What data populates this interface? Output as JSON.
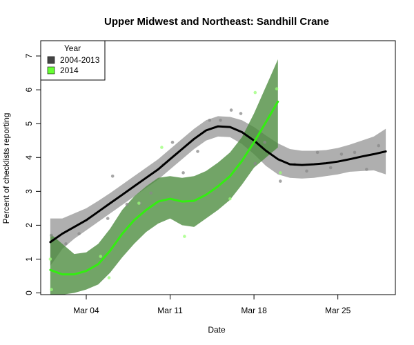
{
  "chart_data": {
    "type": "line",
    "title": "Upper Midwest and Northeast: Sandhill Crane",
    "xlabel": "Date",
    "ylabel": "Percent of checklists reporting",
    "x_units": "day of March",
    "xlim": [
      0.2,
      29.8
    ],
    "ylim": [
      -0.05,
      7.45
    ],
    "x_ticks": [
      {
        "value": 4,
        "label": "Mar 04"
      },
      {
        "value": 11,
        "label": "Mar 11"
      },
      {
        "value": 18,
        "label": "Mar 18"
      },
      {
        "value": 25,
        "label": "Mar 25"
      }
    ],
    "y_ticks": [
      {
        "value": 0,
        "label": "0"
      },
      {
        "value": 1,
        "label": "1"
      },
      {
        "value": 2,
        "label": "2"
      },
      {
        "value": 3,
        "label": "3"
      },
      {
        "value": 4,
        "label": "4"
      },
      {
        "value": 5,
        "label": "5"
      },
      {
        "value": 6,
        "label": "6"
      },
      {
        "value": 7,
        "label": "7"
      }
    ],
    "legend": {
      "title": "Year",
      "position": "top-left",
      "entries": [
        {
          "label": "2004-2013",
          "color": "#444444"
        },
        {
          "label": "2014",
          "color": "#66ff33"
        }
      ]
    },
    "series": [
      {
        "name": "2004-2013",
        "line_color": "#000000",
        "band_color": "#999999",
        "point_color": "#888888",
        "x": [
          1,
          2,
          3,
          4,
          5,
          6,
          7,
          8,
          9,
          10,
          11,
          12,
          13,
          14,
          15,
          16,
          17,
          18,
          19,
          20,
          21,
          22,
          23,
          24,
          25,
          26,
          27,
          28,
          29
        ],
        "y": [
          1.5,
          1.75,
          1.95,
          2.15,
          2.4,
          2.65,
          2.9,
          3.15,
          3.4,
          3.65,
          3.95,
          4.25,
          4.55,
          4.8,
          4.92,
          4.9,
          4.75,
          4.5,
          4.2,
          3.95,
          3.8,
          3.78,
          3.8,
          3.83,
          3.88,
          3.95,
          4.03,
          4.1,
          4.18
        ],
        "lower": [
          0.8,
          1.3,
          1.6,
          1.85,
          2.1,
          2.35,
          2.6,
          2.85,
          3.1,
          3.35,
          3.65,
          3.95,
          4.25,
          4.5,
          4.62,
          4.6,
          4.4,
          4.1,
          3.75,
          3.5,
          3.4,
          3.38,
          3.4,
          3.45,
          3.5,
          3.58,
          3.6,
          3.62,
          3.5
        ],
        "upper": [
          2.2,
          2.2,
          2.35,
          2.5,
          2.72,
          2.95,
          3.2,
          3.45,
          3.7,
          3.95,
          4.25,
          4.55,
          4.85,
          5.1,
          5.22,
          5.2,
          5.1,
          4.9,
          4.65,
          4.42,
          4.25,
          4.2,
          4.2,
          4.22,
          4.28,
          4.38,
          4.5,
          4.62,
          4.85
        ],
        "points": [
          {
            "x": 1.1,
            "y": 1.7
          },
          {
            "x": 2.3,
            "y": 1.45
          },
          {
            "x": 3.4,
            "y": 1.75
          },
          {
            "x": 5.8,
            "y": 2.2
          },
          {
            "x": 6.2,
            "y": 3.45
          },
          {
            "x": 7.4,
            "y": 2.62
          },
          {
            "x": 8.5,
            "y": 2.65
          },
          {
            "x": 9.4,
            "y": 2.95
          },
          {
            "x": 10.4,
            "y": 3.78
          },
          {
            "x": 11.2,
            "y": 4.45
          },
          {
            "x": 12.1,
            "y": 3.55
          },
          {
            "x": 13.3,
            "y": 4.18
          },
          {
            "x": 14.3,
            "y": 5.1
          },
          {
            "x": 15.2,
            "y": 5.1
          },
          {
            "x": 16.1,
            "y": 5.4
          },
          {
            "x": 16.9,
            "y": 5.3
          },
          {
            "x": 18.1,
            "y": 3.82
          },
          {
            "x": 18.9,
            "y": 4.45
          },
          {
            "x": 20.2,
            "y": 3.3
          },
          {
            "x": 21.4,
            "y": 3.8
          },
          {
            "x": 22.4,
            "y": 3.6
          },
          {
            "x": 23.3,
            "y": 4.15
          },
          {
            "x": 24.4,
            "y": 3.7
          },
          {
            "x": 25.3,
            "y": 4.1
          },
          {
            "x": 26.4,
            "y": 4.15
          },
          {
            "x": 27.4,
            "y": 3.65
          },
          {
            "x": 28.4,
            "y": 4.35
          }
        ]
      },
      {
        "name": "2014",
        "line_color": "#33ee11",
        "band_color": "#4a8a3c",
        "point_color": "#99ff77",
        "x": [
          1,
          2,
          3,
          4,
          5,
          6,
          7,
          8,
          9,
          10,
          11,
          12,
          13,
          14,
          15,
          16,
          17,
          18,
          19,
          20
        ],
        "y": [
          0.68,
          0.55,
          0.55,
          0.65,
          0.85,
          1.25,
          1.75,
          2.15,
          2.45,
          2.7,
          2.78,
          2.7,
          2.72,
          2.9,
          3.15,
          3.45,
          3.9,
          4.45,
          5.05,
          5.65
        ],
        "lower": [
          -0.35,
          -0.25,
          0.0,
          0.1,
          0.25,
          0.6,
          1.05,
          1.45,
          1.8,
          2.05,
          2.2,
          2.0,
          1.95,
          2.2,
          2.45,
          2.75,
          3.2,
          3.7,
          4.0,
          4.3
        ],
        "upper": [
          1.75,
          1.45,
          1.15,
          1.2,
          1.45,
          1.9,
          2.45,
          2.85,
          3.15,
          3.4,
          3.45,
          3.4,
          3.45,
          3.6,
          3.85,
          4.15,
          4.6,
          5.3,
          6.1,
          6.9
        ],
        "points": [
          {
            "x": 1.0,
            "y": 1.0
          },
          {
            "x": 1.1,
            "y": 0.1
          },
          {
            "x": 5.2,
            "y": 1.08
          },
          {
            "x": 5.9,
            "y": 0.45
          },
          {
            "x": 8.4,
            "y": 2.65
          },
          {
            "x": 10.3,
            "y": 4.3
          },
          {
            "x": 12.2,
            "y": 1.67
          },
          {
            "x": 16.0,
            "y": 2.78
          },
          {
            "x": 18.1,
            "y": 5.92
          },
          {
            "x": 19.9,
            "y": 6.03
          },
          {
            "x": 20.2,
            "y": 3.55
          }
        ]
      }
    ]
  }
}
